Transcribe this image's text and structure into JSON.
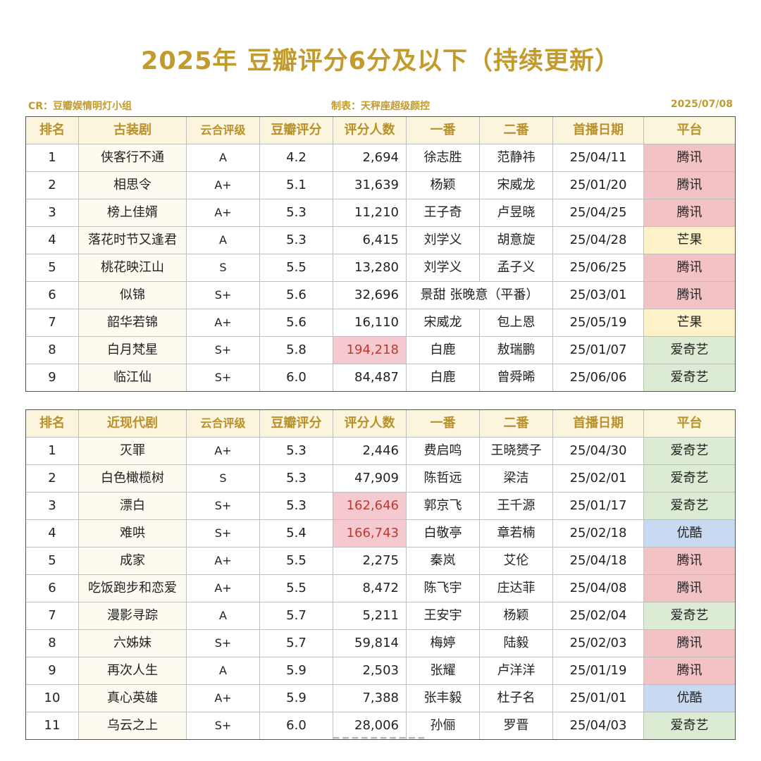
{
  "title": "2025年 豆瓣评分6分及以下（持续更新）",
  "credit": "CR：豆瓣娱情明灯小组",
  "maker": "制表：天秤座超级颜控",
  "date": "2025/07/08",
  "platform_colors": {
    "腾讯": "#f2c2c4",
    "芒果": "#fdf1c8",
    "爱奇艺": "#dcebd4",
    "优酷": "#c7daf1"
  },
  "highlight_color": "#f4c9cf",
  "table1": {
    "headers": [
      "排名",
      "古装剧",
      "云合评级",
      "豆瓣评分",
      "评分人数",
      "一番",
      "二番",
      "首播日期",
      "平台"
    ],
    "rows": [
      {
        "rank": "1",
        "title": "侠客行不通",
        "grade": "A",
        "score": "4.2",
        "count": "2,694",
        "lead1": "徐志胜",
        "lead2": "范静祎",
        "date": "25/04/11",
        "platform": "腾讯"
      },
      {
        "rank": "2",
        "title": "相思令",
        "grade": "A+",
        "score": "5.1",
        "count": "31,639",
        "lead1": "杨颖",
        "lead2": "宋威龙",
        "date": "25/01/20",
        "platform": "腾讯"
      },
      {
        "rank": "3",
        "title": "榜上佳婿",
        "grade": "A+",
        "score": "5.3",
        "count": "11,210",
        "lead1": "王子奇",
        "lead2": "卢昱晓",
        "date": "25/04/25",
        "platform": "腾讯"
      },
      {
        "rank": "4",
        "title": "落花时节又逢君",
        "grade": "A",
        "score": "5.3",
        "count": "6,415",
        "lead1": "刘学义",
        "lead2": "胡意旋",
        "date": "25/04/28",
        "platform": "芒果"
      },
      {
        "rank": "5",
        "title": "桃花映江山",
        "grade": "S",
        "score": "5.5",
        "count": "13,280",
        "lead1": "刘学义",
        "lead2": "孟子义",
        "date": "25/06/25",
        "platform": "腾讯"
      },
      {
        "rank": "6",
        "title": "似锦",
        "grade": "S+",
        "score": "5.6",
        "count": "32,696",
        "lead_merged": "景甜 张晚意（平番）",
        "date": "25/03/01",
        "platform": "腾讯"
      },
      {
        "rank": "7",
        "title": "韶华若锦",
        "grade": "A+",
        "score": "5.6",
        "count": "16,110",
        "lead1": "宋威龙",
        "lead2": "包上恩",
        "date": "25/05/19",
        "platform": "芒果"
      },
      {
        "rank": "8",
        "title": "白月梵星",
        "grade": "S+",
        "score": "5.8",
        "count": "194,218",
        "hl": true,
        "lead1": "白鹿",
        "lead2": "敖瑞鹏",
        "date": "25/01/07",
        "platform": "爱奇艺"
      },
      {
        "rank": "9",
        "title": "临江仙",
        "grade": "S+",
        "score": "6.0",
        "count": "84,487",
        "lead1": "白鹿",
        "lead2": "曾舜晞",
        "date": "25/06/06",
        "platform": "爱奇艺"
      }
    ]
  },
  "table2": {
    "headers": [
      "排名",
      "近现代剧",
      "云合评级",
      "豆瓣评分",
      "评分人数",
      "一番",
      "二番",
      "首播日期",
      "平台"
    ],
    "rows": [
      {
        "rank": "1",
        "title": "灭罪",
        "grade": "A+",
        "score": "5.3",
        "count": "2,446",
        "lead1": "费启鸣",
        "lead2": "王晓赟子",
        "date": "25/04/30",
        "platform": "爱奇艺"
      },
      {
        "rank": "2",
        "title": "白色橄榄树",
        "grade": "S",
        "score": "5.3",
        "count": "47,909",
        "lead1": "陈哲远",
        "lead2": "梁洁",
        "date": "25/02/01",
        "platform": "爱奇艺"
      },
      {
        "rank": "3",
        "title": "漂白",
        "grade": "S+",
        "score": "5.3",
        "count": "162,646",
        "hl": true,
        "lead1": "郭京飞",
        "lead2": "王千源",
        "date": "25/01/17",
        "platform": "爱奇艺"
      },
      {
        "rank": "4",
        "title": "难哄",
        "grade": "S+",
        "score": "5.4",
        "count": "166,743",
        "hl": true,
        "lead1": "白敬亭",
        "lead2": "章若楠",
        "date": "25/02/18",
        "platform": "优酷"
      },
      {
        "rank": "5",
        "title": "成家",
        "grade": "A+",
        "score": "5.5",
        "count": "2,275",
        "lead1": "秦岚",
        "lead2": "艾伦",
        "date": "25/04/18",
        "platform": "腾讯"
      },
      {
        "rank": "6",
        "title": "吃饭跑步和恋爱",
        "grade": "A+",
        "score": "5.5",
        "count": "8,472",
        "lead1": "陈飞宇",
        "lead2": "庄达菲",
        "date": "25/04/08",
        "platform": "腾讯"
      },
      {
        "rank": "7",
        "title": "漫影寻踪",
        "grade": "A",
        "score": "5.7",
        "count": "5,211",
        "lead1": "王安宇",
        "lead2": "杨颖",
        "date": "25/02/04",
        "platform": "爱奇艺"
      },
      {
        "rank": "8",
        "title": "六姊妹",
        "grade": "S+",
        "score": "5.7",
        "count": "59,814",
        "lead1": "梅婷",
        "lead2": "陆毅",
        "date": "25/02/03",
        "platform": "腾讯"
      },
      {
        "rank": "9",
        "title": "再次人生",
        "grade": "A",
        "score": "5.9",
        "count": "2,503",
        "lead1": "张耀",
        "lead2": "卢洋洋",
        "date": "25/01/19",
        "platform": "腾讯"
      },
      {
        "rank": "10",
        "title": "真心英雄",
        "grade": "A+",
        "score": "5.9",
        "count": "7,388",
        "lead1": "张丰毅",
        "lead2": "杜子名",
        "date": "25/01/01",
        "platform": "优酷"
      },
      {
        "rank": "11",
        "title": "乌云之上",
        "grade": "S+",
        "score": "6.0",
        "count": "28,006",
        "lead1": "孙俪",
        "lead2": "罗晋",
        "date": "25/04/03",
        "platform": "爱奇艺"
      }
    ]
  }
}
